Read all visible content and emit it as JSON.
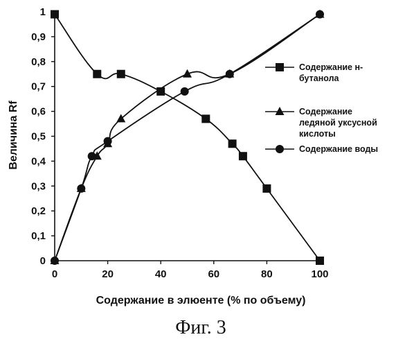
{
  "caption": "Фиг. 3",
  "chart_data": {
    "type": "line",
    "xlabel": "Содержание в элюенте (% по объему)",
    "ylabel": "Величина Rf",
    "xlim": [
      0,
      100
    ],
    "ylim": [
      0,
      1
    ],
    "x_ticks": [
      "0",
      "20",
      "40",
      "60",
      "80",
      "100"
    ],
    "y_ticks": [
      "0",
      "0,1",
      "0,2",
      "0,3",
      "0,4",
      "0,5",
      "0,6",
      "0,7",
      "0,8",
      "0,9",
      "1"
    ],
    "grid": false,
    "legend_position": "right",
    "series": [
      {
        "name": "Содержание н-бутанола",
        "legend_lines": [
          "Содержание н-",
          "бутанола"
        ],
        "marker": "square",
        "x": [
          0,
          16,
          25,
          40,
          57,
          67,
          71,
          80,
          100
        ],
        "y": [
          0.99,
          0.75,
          0.75,
          0.68,
          0.57,
          0.47,
          0.42,
          0.29,
          0.0
        ]
      },
      {
        "name": "Содержание ледяной уксусной кислоты",
        "legend_lines": [
          "Содержание",
          "ледяной уксусной",
          "кислоты"
        ],
        "marker": "triangle",
        "x": [
          0,
          10,
          16,
          20,
          25,
          50,
          66,
          100
        ],
        "y": [
          0.0,
          0.29,
          0.42,
          0.47,
          0.57,
          0.75,
          0.75,
          0.99
        ]
      },
      {
        "name": "Содержание воды",
        "legend_lines": [
          "Содержание воды"
        ],
        "marker": "circle",
        "x": [
          0,
          10,
          14,
          20,
          49,
          66,
          100
        ],
        "y": [
          0.0,
          0.29,
          0.42,
          0.48,
          0.68,
          0.75,
          0.99
        ]
      }
    ]
  }
}
